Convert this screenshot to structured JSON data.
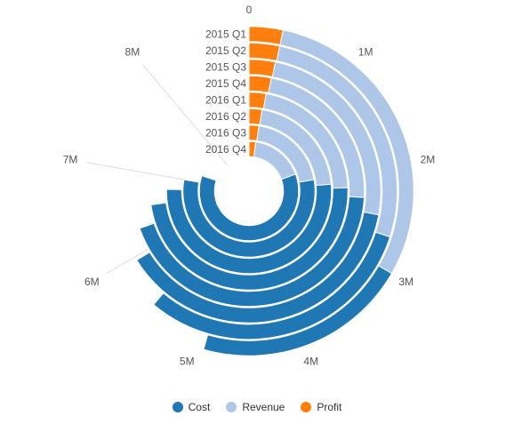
{
  "chart_data": {
    "type": "radial-stacked-bar",
    "categories": [
      "2015 Q1",
      "2015 Q2",
      "2015 Q3",
      "2015 Q4",
      "2016 Q1",
      "2016 Q2",
      "2016 Q3",
      "2016 Q4"
    ],
    "series": [
      {
        "name": "Profit",
        "color": "#ff7f0e",
        "values": [
          0.3,
          0.3,
          0.29,
          0.28,
          0.25,
          0.23,
          0.22,
          0.2
        ]
      },
      {
        "name": "Revenue",
        "color": "#aec7e8",
        "values": [
          2.7,
          2.4,
          2.22,
          2.05,
          1.95,
          1.9,
          1.78,
          1.55
        ]
      },
      {
        "name": "Cost",
        "color": "#1f77b4",
        "values": [
          1.9,
          2.8,
          3.45,
          3.95,
          4.35,
          4.65,
          5.0,
          5.45
        ]
      }
    ],
    "angle_ticks": [
      "0",
      "1M",
      "2M",
      "3M",
      "4M",
      "5M",
      "6M",
      "7M",
      "8M"
    ],
    "angle_range": [
      0,
      9
    ],
    "legend_position": "bottom"
  },
  "legend": {
    "items": [
      {
        "label": "Cost",
        "color": "#1f77b4"
      },
      {
        "label": "Revenue",
        "color": "#aec7e8"
      },
      {
        "label": "Profit",
        "color": "#ff7f0e"
      }
    ]
  }
}
